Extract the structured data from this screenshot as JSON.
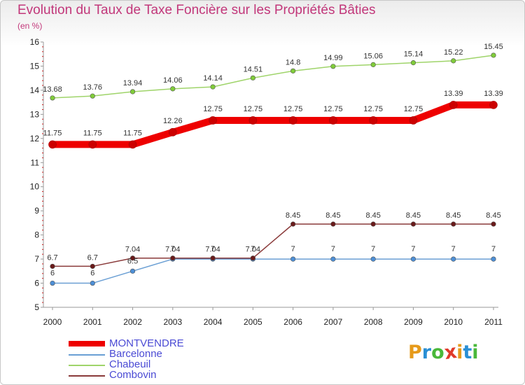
{
  "title": "Evolution du Taux de Taxe Foncière sur les Propriétés Bâties",
  "subtitle": "(en %)",
  "chart_data": {
    "type": "line",
    "title": "Evolution du Taux de Taxe Foncière sur les Propriétés Bâties",
    "ylabel": "(en %)",
    "xlabel": "",
    "categories": [
      "2000",
      "2001",
      "2002",
      "2003",
      "2004",
      "2005",
      "2006",
      "2007",
      "2008",
      "2009",
      "2010",
      "2011"
    ],
    "ylim": [
      5,
      16
    ],
    "yticks": [
      5,
      6,
      7,
      8,
      9,
      10,
      11,
      12,
      13,
      14,
      15,
      16
    ],
    "grid": false,
    "legend_position": "bottom-left",
    "series": [
      {
        "name": "MONTVENDRE",
        "color": "#ee0000",
        "marker": "#cc0000",
        "thick": true,
        "values": [
          11.75,
          11.75,
          11.75,
          12.26,
          12.75,
          12.75,
          12.75,
          12.75,
          12.75,
          12.75,
          13.39,
          13.39
        ],
        "labels": [
          "11.75",
          "11.75",
          "11.75",
          "12.26",
          "12.75",
          "12.75",
          "12.75",
          "12.75",
          "12.75",
          "12.75",
          "13.39",
          "13.39"
        ]
      },
      {
        "name": "Barcelonne",
        "color": "#6a9fd4",
        "marker": "#4d8fd6",
        "thick": false,
        "values": [
          6,
          6,
          6.5,
          7,
          7,
          7,
          7,
          7,
          7,
          7,
          7,
          7
        ],
        "labels": [
          "6",
          "6",
          "6.5",
          "7",
          "7",
          "7",
          "7",
          "7",
          "7",
          "7",
          "7",
          "7"
        ]
      },
      {
        "name": "Chabeuil",
        "color": "#9fd46a",
        "marker": "#80cc3a",
        "thick": false,
        "values": [
          13.68,
          13.76,
          13.94,
          14.06,
          14.14,
          14.51,
          14.8,
          14.99,
          15.06,
          15.14,
          15.22,
          15.45
        ],
        "labels": [
          "13.68",
          "13.76",
          "13.94",
          "14.06",
          "14.14",
          "14.51",
          "14.8",
          "14.99",
          "15.06",
          "15.14",
          "15.22",
          "15.45"
        ]
      },
      {
        "name": "Combovin",
        "color": "#8a3a3a",
        "marker": "#6a1a1a",
        "thick": false,
        "values": [
          6.7,
          6.7,
          7.04,
          7.04,
          7.04,
          7.04,
          8.45,
          8.45,
          8.45,
          8.45,
          8.45,
          8.45
        ],
        "labels": [
          "6.7",
          "6.7",
          "7.04",
          "7.04",
          "7.04",
          "7.04",
          "8.45",
          "8.45",
          "8.45",
          "8.45",
          "8.45",
          "8.45"
        ]
      }
    ]
  },
  "logo": {
    "letters": [
      "P",
      "r",
      "o",
      "x",
      "i",
      "t",
      "i"
    ],
    "colors": [
      "#e69a1a",
      "#2a8fd4",
      "#4ab83a",
      "#e03a2a",
      "#e69a1a",
      "#2a8fd4",
      "#4ab83a"
    ]
  }
}
